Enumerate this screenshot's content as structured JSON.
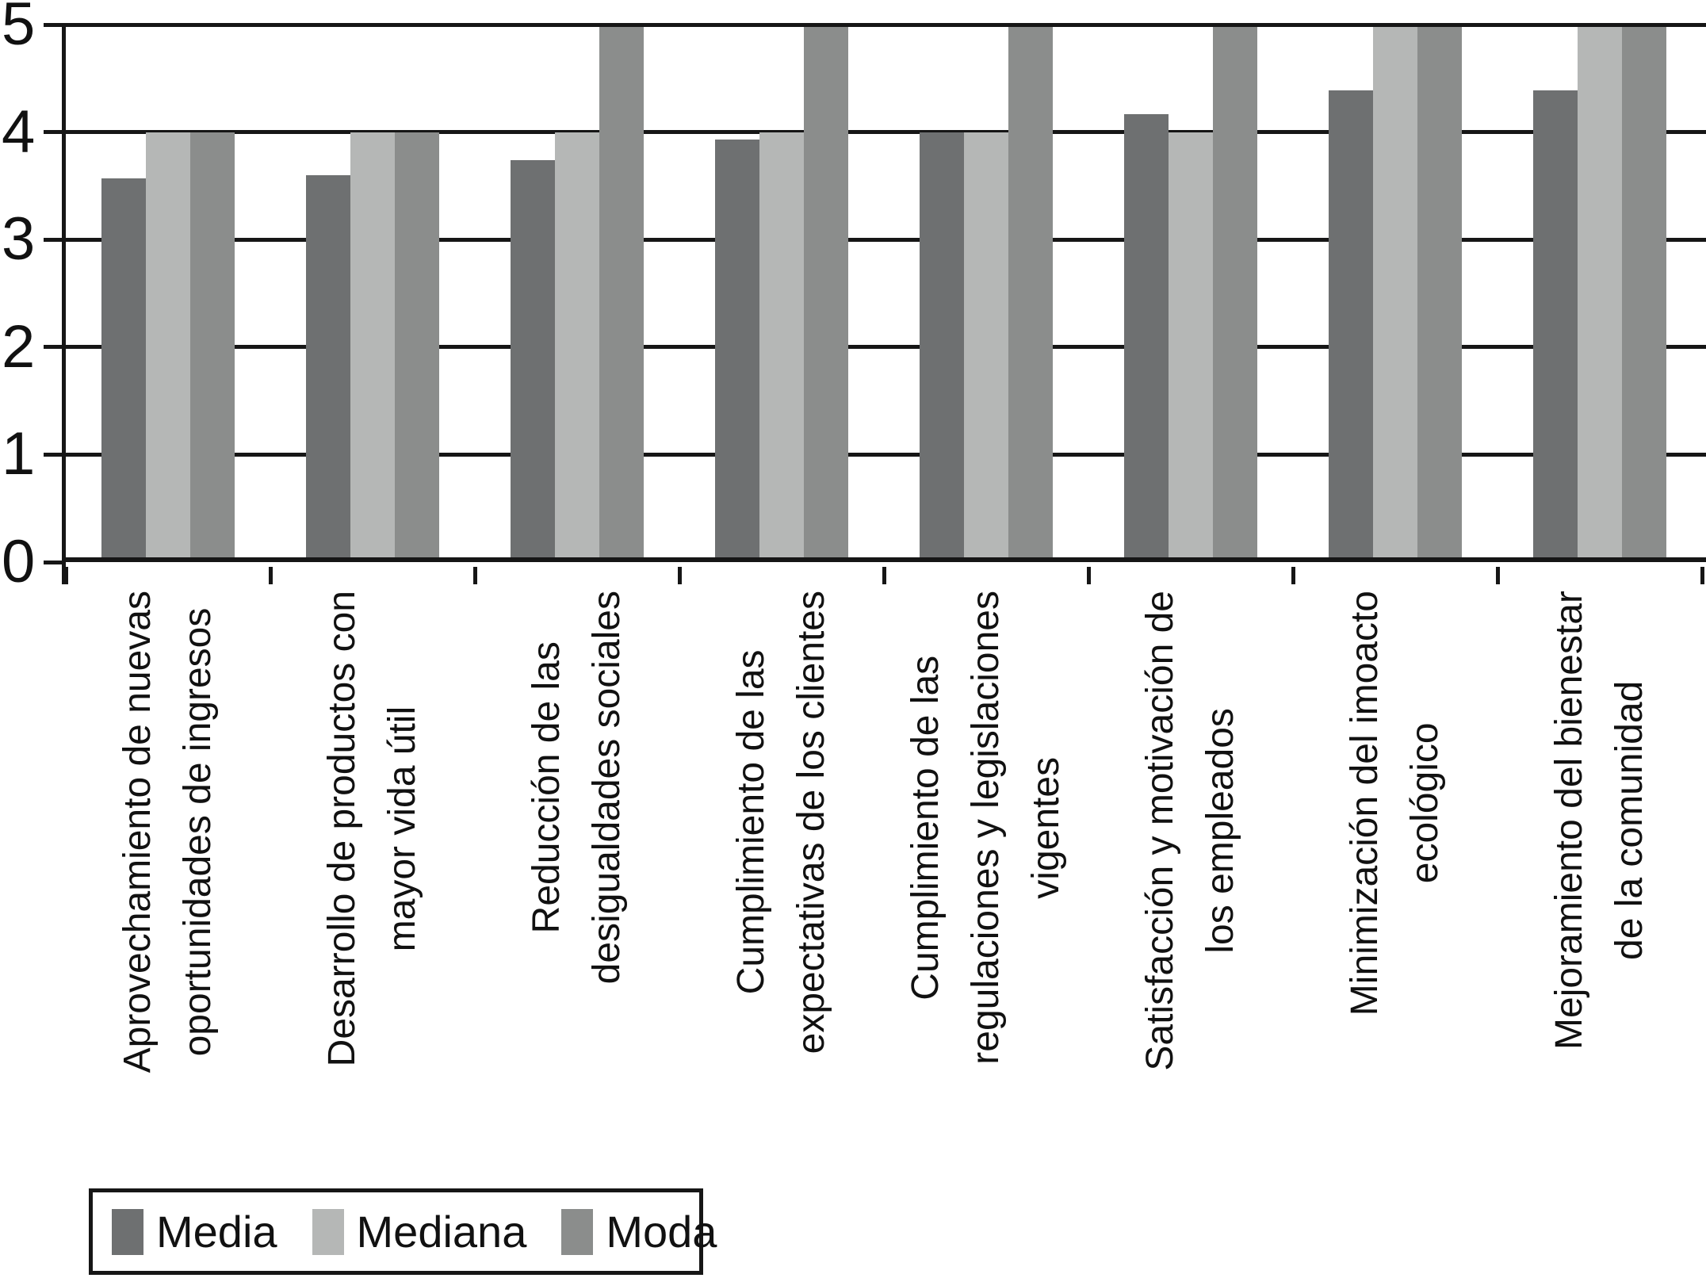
{
  "chart_data": {
    "type": "bar",
    "title": "",
    "xlabel": "",
    "ylabel": "",
    "ylim": [
      0,
      5
    ],
    "yticks": [
      0,
      1,
      2,
      3,
      4,
      5
    ],
    "grid": true,
    "legend_position": "bottom-left",
    "categories": [
      "Aprovechamiento de nuevas\noportunidades de ingresos",
      "Desarrollo de productos con\nmayor vida útil",
      "Reducción de las\ndesigualdades sociales",
      "Cumplimiento de las\nexpectativas de los clientes",
      "Cumplimiento de las\nregulaciones y legislaciones\nvigentes",
      "Satisfacción y motivación de\nlos empleados",
      "Minimización del imoacto\necológico",
      "Mejoramiento del bienestar\nde la comunidad"
    ],
    "series": [
      {
        "name": "Media",
        "color": "#6e7071",
        "values": [
          3.57,
          3.6,
          3.74,
          3.93,
          4.0,
          4.17,
          4.39,
          4.39
        ]
      },
      {
        "name": "Mediana",
        "color": "#b5b7b6",
        "values": [
          4,
          4,
          4,
          4,
          4,
          4,
          5,
          5
        ]
      },
      {
        "name": "Moda",
        "color": "#8b8d8c",
        "values": [
          4,
          4,
          5,
          5,
          5,
          5,
          5,
          5
        ]
      }
    ],
    "axis_color": "#161616"
  }
}
